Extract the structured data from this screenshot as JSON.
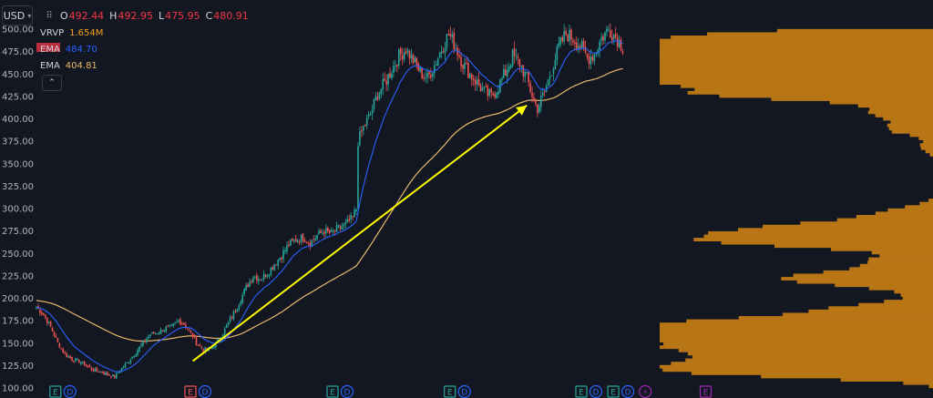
{
  "header": {
    "currency": "USD",
    "ohlc": [
      {
        "label": "O",
        "value": "492.44"
      },
      {
        "label": "H",
        "value": "492.95"
      },
      {
        "label": "L",
        "value": "475.95"
      },
      {
        "label": "C",
        "value": "480.91"
      }
    ]
  },
  "legend": {
    "vrvp": {
      "name": "VRVP",
      "value": "1.654M"
    },
    "ema_fast": {
      "name": "EMA",
      "value": "484.70"
    },
    "ema_slow": {
      "name": "EMA",
      "value": "404.81"
    }
  },
  "colors": {
    "background": "#131722",
    "up": "#26a69a",
    "down": "#ef5350",
    "ema_fast": "#2962ff",
    "ema_slow": "#e8b96a",
    "volume_profile": "#c07a15",
    "annotation_arrow": "#ffff00",
    "earnings": "#26a69a",
    "earnings_red": "#ef5350",
    "dividend": "#2962ff",
    "split": "#9c27b0"
  },
  "chart_data": {
    "type": "candlestick",
    "y_ticks": [
      "500.00",
      "475.00",
      "450.00",
      "425.00",
      "400.00",
      "375.00",
      "350.00",
      "325.00",
      "300.00",
      "275.00",
      "250.00",
      "225.00",
      "200.00",
      "175.00",
      "150.00",
      "125.00",
      "100.00"
    ],
    "ylim": [
      100,
      500
    ],
    "grid": false,
    "price_path": [
      [
        0,
        190
      ],
      [
        4,
        182
      ],
      [
        8,
        168
      ],
      [
        12,
        150
      ],
      [
        16,
        138
      ],
      [
        20,
        132
      ],
      [
        24,
        130
      ],
      [
        28,
        125
      ],
      [
        32,
        120
      ],
      [
        36,
        118
      ],
      [
        40,
        115
      ],
      [
        44,
        113
      ],
      [
        48,
        122
      ],
      [
        52,
        130
      ],
      [
        56,
        140
      ],
      [
        60,
        150
      ],
      [
        64,
        160
      ],
      [
        68,
        162
      ],
      [
        72,
        166
      ],
      [
        76,
        168
      ],
      [
        80,
        175
      ],
      [
        84,
        170
      ],
      [
        88,
        158
      ],
      [
        90,
        150
      ],
      [
        94,
        142
      ],
      [
        98,
        144
      ],
      [
        102,
        152
      ],
      [
        106,
        165
      ],
      [
        110,
        180
      ],
      [
        114,
        195
      ],
      [
        118,
        212
      ],
      [
        122,
        225
      ],
      [
        126,
        222
      ],
      [
        130,
        228
      ],
      [
        134,
        238
      ],
      [
        138,
        248
      ],
      [
        142,
        260
      ],
      [
        146,
        265
      ],
      [
        150,
        268
      ],
      [
        154,
        262
      ],
      [
        158,
        270
      ],
      [
        162,
        275
      ],
      [
        166,
        272
      ],
      [
        170,
        278
      ],
      [
        174,
        282
      ],
      [
        178,
        290
      ],
      [
        180,
        300
      ],
      [
        181,
        375
      ],
      [
        184,
        390
      ],
      [
        188,
        405
      ],
      [
        192,
        428
      ],
      [
        196,
        440
      ],
      [
        200,
        455
      ],
      [
        204,
        470
      ],
      [
        208,
        478
      ],
      [
        212,
        465
      ],
      [
        216,
        452
      ],
      [
        220,
        445
      ],
      [
        224,
        460
      ],
      [
        228,
        478
      ],
      [
        232,
        495
      ],
      [
        236,
        480
      ],
      [
        240,
        462
      ],
      [
        244,
        450
      ],
      [
        248,
        440
      ],
      [
        252,
        430
      ],
      [
        256,
        425
      ],
      [
        260,
        436
      ],
      [
        264,
        452
      ],
      [
        268,
        470
      ],
      [
        272,
        462
      ],
      [
        276,
        445
      ],
      [
        280,
        420
      ],
      [
        282,
        412
      ],
      [
        286,
        430
      ],
      [
        290,
        455
      ],
      [
        294,
        480
      ],
      [
        298,
        495
      ],
      [
        302,
        490
      ],
      [
        306,
        482
      ],
      [
        310,
        468
      ],
      [
        314,
        472
      ],
      [
        318,
        490
      ],
      [
        322,
        500
      ],
      [
        326,
        492
      ],
      [
        330,
        480
      ]
    ],
    "ema_fast_value": 484.7,
    "ema_slow_value": 404.81,
    "arrow": {
      "from": [
        88,
        130
      ],
      "to": [
        276,
        415
      ]
    },
    "events": [
      {
        "bar": 4,
        "labels": [
          "E",
          "D"
        ],
        "types": [
          "earnings",
          "dividend"
        ]
      },
      {
        "bar": 80,
        "labels": [
          "E",
          "D"
        ],
        "types": [
          "earnings_red",
          "dividend"
        ]
      },
      {
        "bar": 160,
        "labels": [
          "E",
          "D"
        ],
        "types": [
          "earnings",
          "dividend"
        ]
      },
      {
        "bar": 226,
        "labels": [
          "E",
          "D"
        ],
        "types": [
          "earnings",
          "dividend"
        ]
      },
      {
        "bar": 300,
        "labels": [
          "E",
          "D"
        ],
        "types": [
          "earnings",
          "dividend"
        ]
      },
      {
        "bar": 318,
        "labels": [
          "E",
          "D"
        ],
        "types": [
          "earnings",
          "dividend"
        ]
      },
      {
        "bar": 336,
        "labels": [
          "⚡"
        ],
        "types": [
          "split"
        ]
      },
      {
        "bar": 370,
        "labels": [
          "E"
        ],
        "types": [
          "split"
        ]
      }
    ]
  }
}
